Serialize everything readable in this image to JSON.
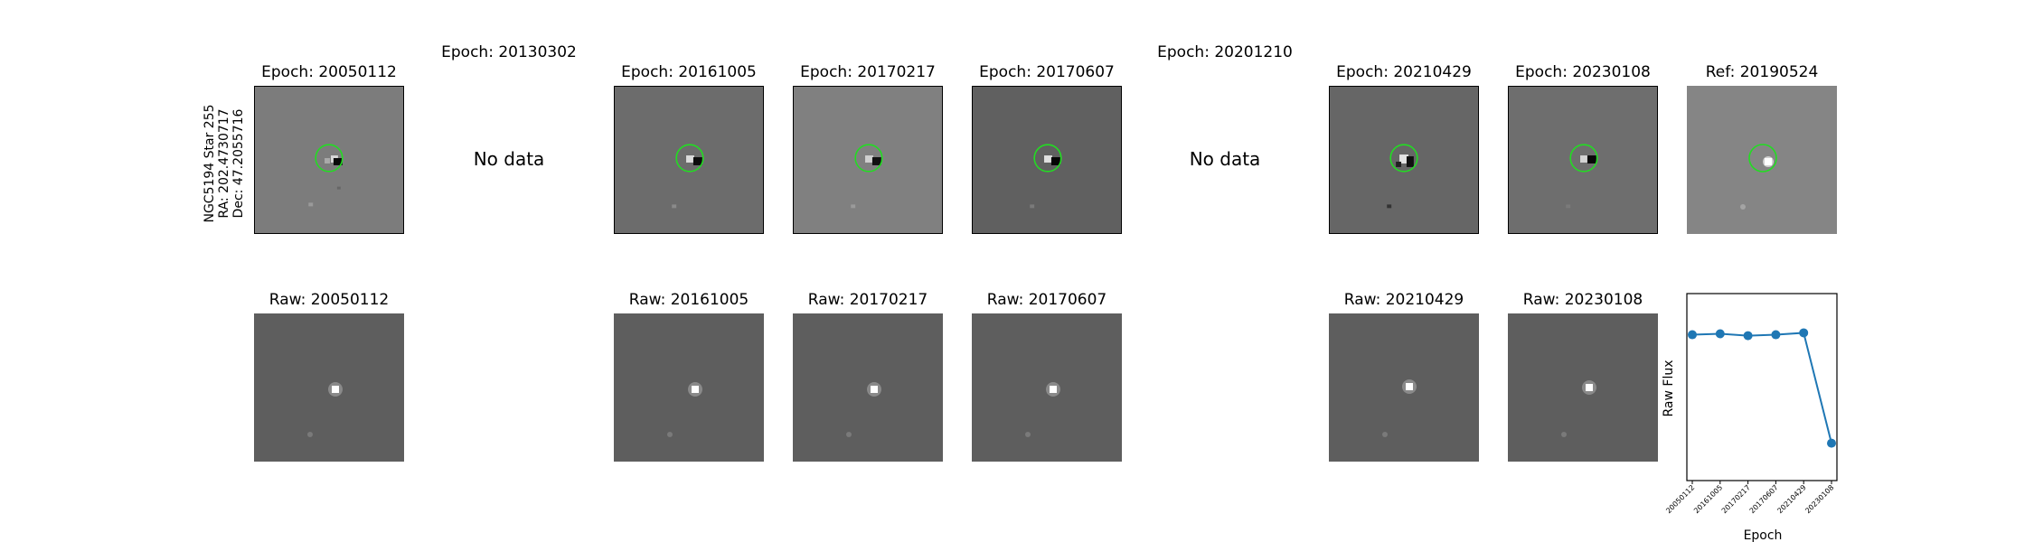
{
  "star_label": {
    "line1": "NGC5194 Star 255",
    "line2": "RA: 202.4730717",
    "line3": "Dec: 47.2055716"
  },
  "top_row": [
    {
      "title": "Epoch: 20050112",
      "has_data": true
    },
    {
      "title": "Epoch: 20130302",
      "has_data": false,
      "message": "No data"
    },
    {
      "title": "Epoch: 20161005",
      "has_data": true
    },
    {
      "title": "Epoch: 20170217",
      "has_data": true
    },
    {
      "title": "Epoch: 20170607",
      "has_data": true
    },
    {
      "title": "Epoch: 20201210",
      "has_data": false,
      "message": "No data"
    },
    {
      "title": "Epoch: 20210429",
      "has_data": true
    },
    {
      "title": "Epoch: 20230108",
      "has_data": true
    },
    {
      "title": "Ref: 20190524",
      "has_data": true
    }
  ],
  "bottom_row": [
    {
      "title": "Raw: 20050112"
    },
    {
      "title": "Raw: 20161005"
    },
    {
      "title": "Raw: 20170217"
    },
    {
      "title": "Raw: 20170607"
    },
    {
      "title": "Raw: 20210429"
    },
    {
      "title": "Raw: 20230108"
    }
  ],
  "colors": {
    "aperture": "#22dd22",
    "series": "#1f77b4",
    "diff_bg": "#7a7a7a",
    "raw_bg": "#5c5c5c"
  },
  "chart_data": {
    "type": "line",
    "xlabel": "Epoch",
    "ylabel": "Raw Flux",
    "categories": [
      "20050112",
      "20161005",
      "20170217",
      "20170607",
      "20210429",
      "20230108"
    ],
    "values": [
      0.78,
      0.785,
      0.775,
      0.78,
      0.79,
      0.2
    ],
    "ylim": [
      0,
      1
    ],
    "grid": false,
    "y_ticks_shown": false
  }
}
